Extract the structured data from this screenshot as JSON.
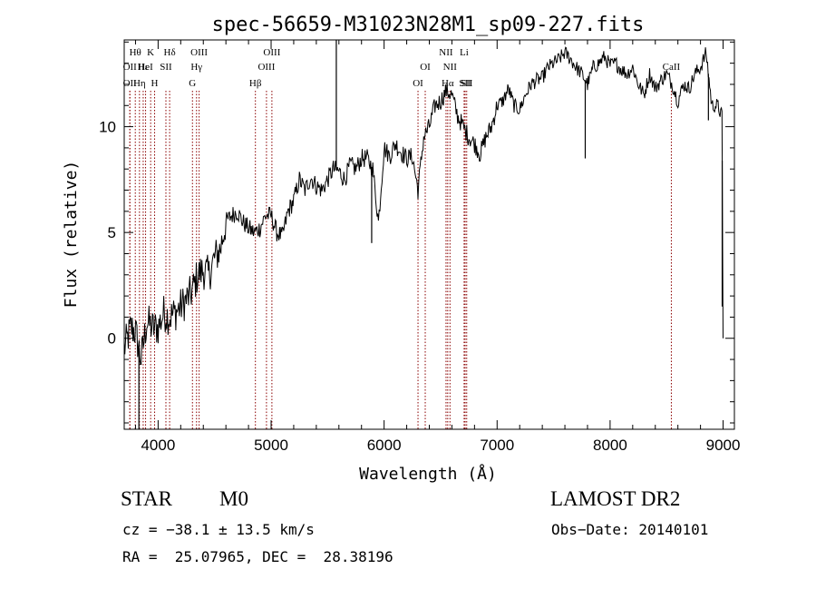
{
  "chart_data": {
    "type": "line",
    "title": "spec-56659-M31023N28M1_sp09-227.fits",
    "xlabel": "Wavelength (Å)",
    "ylabel": "Flux (relative)",
    "xlim": [
      3700,
      9100
    ],
    "ylim": [
      -4.3,
      14.1
    ],
    "xticks": [
      4000,
      5000,
      6000,
      7000,
      8000,
      9000
    ],
    "xtick_labels": [
      "4000",
      "5000",
      "6000",
      "7000",
      "8000",
      "9000"
    ],
    "yticks": [
      0,
      5,
      10
    ],
    "ytick_labels": [
      "0",
      "5",
      "10"
    ],
    "grid": false,
    "line_color": "#000000",
    "marker_color": "#8b0000",
    "series": [
      {
        "name": "Flux",
        "x": [
          3700,
          3760,
          3800,
          3850,
          3900,
          3950,
          4000,
          4050,
          4100,
          4150,
          4200,
          4250,
          4300,
          4350,
          4400,
          4450,
          4500,
          4550,
          4600,
          4650,
          4700,
          4750,
          4800,
          4850,
          4900,
          4950,
          5000,
          5050,
          5100,
          5150,
          5200,
          5250,
          5300,
          5350,
          5400,
          5450,
          5500,
          5550,
          5600,
          5650,
          5700,
          5750,
          5800,
          5850,
          5900,
          5950,
          6000,
          6050,
          6100,
          6150,
          6200,
          6250,
          6300,
          6350,
          6400,
          6450,
          6500,
          6550,
          6600,
          6650,
          6700,
          6750,
          6800,
          6850,
          6900,
          6950,
          7000,
          7050,
          7100,
          7150,
          7200,
          7250,
          7300,
          7350,
          7400,
          7450,
          7500,
          7550,
          7600,
          7650,
          7700,
          7750,
          7800,
          7850,
          7900,
          7950,
          8000,
          8050,
          8100,
          8150,
          8200,
          8250,
          8300,
          8350,
          8400,
          8450,
          8500,
          8550,
          8600,
          8650,
          8700,
          8750,
          8800,
          8850,
          8900,
          8950,
          8990,
          9000
        ],
        "values": [
          -0.5,
          0.5,
          0.3,
          -1.0,
          0.8,
          0.5,
          0.5,
          1.2,
          1.0,
          1.2,
          1.5,
          1.8,
          2.2,
          3.0,
          3.2,
          3.0,
          3.8,
          4.2,
          5.5,
          5.8,
          6.0,
          5.5,
          5.2,
          5.0,
          5.2,
          5.8,
          5.8,
          5.0,
          4.8,
          6.0,
          6.5,
          7.5,
          7.0,
          7.6,
          7.2,
          7.0,
          7.5,
          8.0,
          7.9,
          7.5,
          8.2,
          8.0,
          8.5,
          8.5,
          8.0,
          5.5,
          9.0,
          8.6,
          9.2,
          8.8,
          8.5,
          8.6,
          7.0,
          9.5,
          10.0,
          11.0,
          11.2,
          11.7,
          11.5,
          10.5,
          10.0,
          9.5,
          9.2,
          8.7,
          9.5,
          10.0,
          11.0,
          11.2,
          11.8,
          11.0,
          10.8,
          11.5,
          12.0,
          12.2,
          12.3,
          12.8,
          13.0,
          13.2,
          13.5,
          13.2,
          12.8,
          12.5,
          12.0,
          12.8,
          13.0,
          13.3,
          12.9,
          13.0,
          12.7,
          12.5,
          12.8,
          12.0,
          11.5,
          12.5,
          11.8,
          12.2,
          12.5,
          12.0,
          11.2,
          12.0,
          11.8,
          12.5,
          12.8,
          13.5,
          11.0,
          11.0,
          10.5,
          0.0
        ]
      }
    ],
    "spikes": [
      {
        "x": 3830,
        "y": -4.3
      },
      {
        "x": 5577,
        "y": 14.1
      },
      {
        "x": 5890,
        "y": 4.5
      },
      {
        "x": 7780,
        "y": 8.5
      },
      {
        "x": 8870,
        "y": 10.3
      },
      {
        "x": 8992,
        "y": 1.5
      }
    ],
    "line_markers": [
      {
        "x": 3750,
        "label": "OII",
        "row": 2
      },
      {
        "x": 3750,
        "label": "OII",
        "row": 3
      },
      {
        "x": 3798,
        "label": "Hθ",
        "row": 1
      },
      {
        "x": 3835,
        "label": "Hη",
        "row": 3
      },
      {
        "x": 3868,
        "label": "Hε",
        "row": 2
      },
      {
        "x": 3889,
        "label": "HeI",
        "row": 2
      },
      {
        "x": 3934,
        "label": "K",
        "row": 1
      },
      {
        "x": 3969,
        "label": "H",
        "row": 3
      },
      {
        "x": 4069,
        "label": "SII",
        "row": 2
      },
      {
        "x": 4102,
        "label": "Hδ",
        "row": 1
      },
      {
        "x": 4304,
        "label": "G",
        "row": 3
      },
      {
        "x": 4340,
        "label": "Hγ",
        "row": 2
      },
      {
        "x": 4363,
        "label": "OIII",
        "row": 1
      },
      {
        "x": 4861,
        "label": "Hβ",
        "row": 3
      },
      {
        "x": 4959,
        "label": "OIII",
        "row": 2
      },
      {
        "x": 5007,
        "label": "OIII",
        "row": 1
      },
      {
        "x": 6300,
        "label": "OI",
        "row": 3
      },
      {
        "x": 6364,
        "label": "OI",
        "row": 2
      },
      {
        "x": 6548,
        "label": "NII",
        "row": 1
      },
      {
        "x": 6563,
        "label": "Hα",
        "row": 3
      },
      {
        "x": 6583,
        "label": "NII",
        "row": 2
      },
      {
        "x": 6708,
        "label": "Li",
        "row": 1
      },
      {
        "x": 6717,
        "label": "SII",
        "row": 3
      },
      {
        "x": 6731,
        "label": "SII",
        "row": 3
      },
      {
        "x": 8542,
        "label": "CaII",
        "row": 2
      }
    ]
  },
  "info": {
    "object_class": "STAR",
    "subclass": "M0",
    "survey": "LAMOST DR2",
    "cz": "cz = −38.1 ± 13.5 km/s",
    "obs_date": "Obs−Date: 20140101",
    "coords": "RA =  25.07965, DEC =  28.38196"
  }
}
